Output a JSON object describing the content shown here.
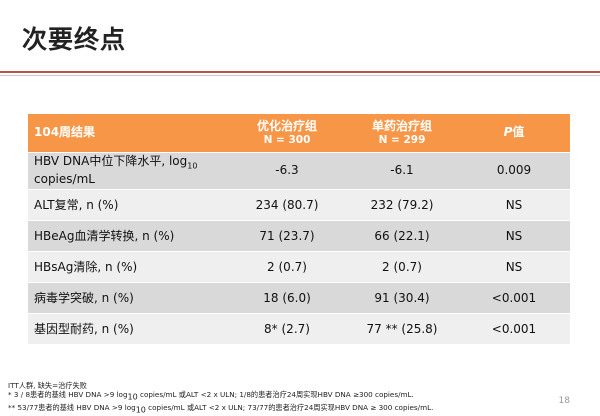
{
  "title": "次要终点",
  "table": {
    "header": {
      "col0": "104周结果",
      "col1_name": "优化治疗组",
      "col1_n": "N = 300",
      "col2_name": "单药治疗组",
      "col2_n": "N = 299",
      "col3_p": "P",
      "col3_rest": "值"
    },
    "rows": [
      {
        "label_a": "HBV DNA中位下降水平, log",
        "label_sub": "10",
        "label_b": "copies/mL",
        "v1": "-6.3",
        "v2": "-6.1",
        "p": "0.009"
      },
      {
        "label": "ALT复常, n (%)",
        "v1": "234 (80.7)",
        "v2": "232 (79.2)",
        "p": "NS"
      },
      {
        "label": "HBeAg血清学转换, n (%)",
        "v1": "71 (23.7)",
        "v2": "66 (22.1)",
        "p": "NS"
      },
      {
        "label": "HBsAg清除, n (%)",
        "v1": "2 (0.7)",
        "v2": "2 (0.7)",
        "p": "NS"
      },
      {
        "label": "病毒学突破, n (%)",
        "v1": "18 (6.0)",
        "v2": "91 (30.4)",
        "p": "<0.001"
      },
      {
        "label": "基因型耐药, n (%)",
        "v1": "8* (2.7)",
        "v2": "77 ** (25.8)",
        "p": "<0.001"
      }
    ]
  },
  "footnotes": {
    "line1": "ITT人群, 缺失=治疗失败",
    "line2_a": "* 3 / 8患者的基线 HBV DNA >9 log",
    "line2_sub": "10",
    "line2_b": " copies/mL 或ALT <2 x ULN; 1/8的患者治疗24周实现HBV DNA ≥300 copies/mL.",
    "line3_a": "** 53/77患者的基线 HBV DNA >9 log",
    "line3_sub": "10",
    "line3_b": " copies/mL 或ALT <2 x ULN; 73/77的患者治疗24周实现HBV DNA ≥ 300 copies/mL."
  },
  "page_number": "18",
  "colors": {
    "header_bg": "#f79646",
    "row_dark": "#d9d9d9",
    "row_light": "#efefef",
    "rule": "#c0504d"
  }
}
